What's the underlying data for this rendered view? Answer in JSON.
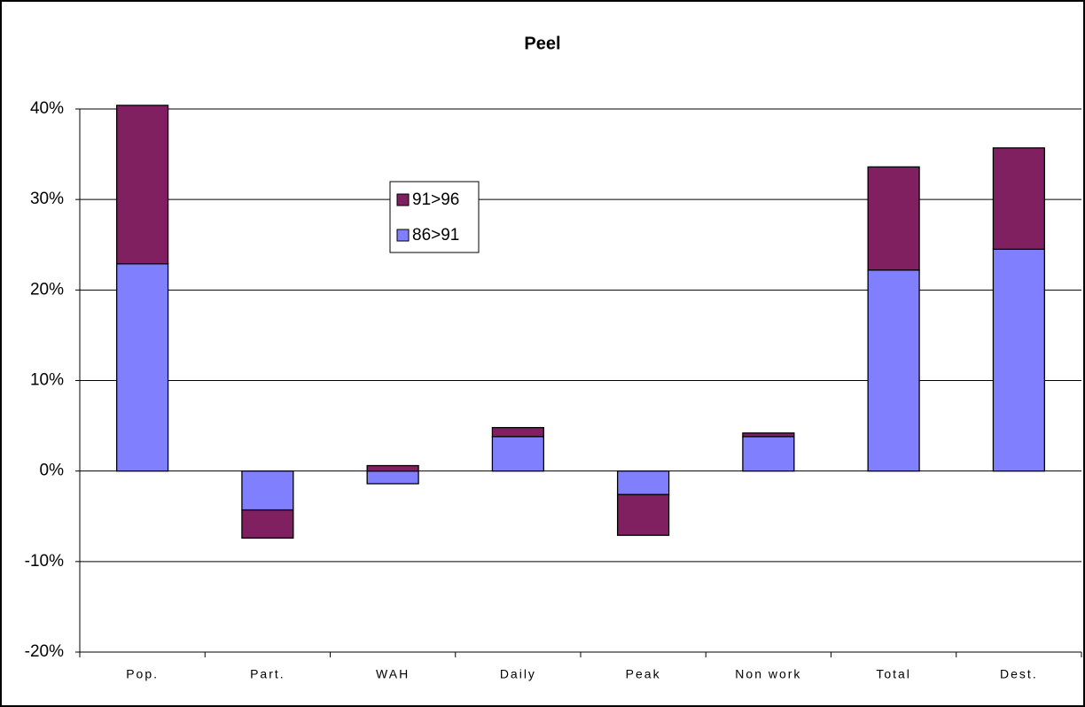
{
  "chart_data": {
    "type": "stacked_bar",
    "title": "Peel",
    "categories": [
      "Pop.",
      "Part.",
      "WAH",
      "Daily",
      "Peak",
      "Non work",
      "Total",
      "Dest."
    ],
    "series": [
      {
        "name": "86>91",
        "color": "#8080ff",
        "values": [
          22.9,
          -4.3,
          -1.4,
          3.8,
          -2.6,
          3.8,
          22.2,
          24.5
        ]
      },
      {
        "name": "91>96",
        "color": "#802060",
        "values": [
          17.5,
          -3.1,
          0.6,
          1.0,
          -4.5,
          0.4,
          11.4,
          11.2
        ]
      }
    ],
    "ylim": [
      -20,
      40
    ],
    "yticks": [
      {
        "value": -20,
        "label": "-20%"
      },
      {
        "value": -10,
        "label": "-10%"
      },
      {
        "value": 0,
        "label": "0%"
      },
      {
        "value": 10,
        "label": "10%"
      },
      {
        "value": 20,
        "label": "20%"
      },
      {
        "value": 30,
        "label": "30%"
      },
      {
        "value": 40,
        "label": "40%"
      }
    ],
    "grid": true
  }
}
